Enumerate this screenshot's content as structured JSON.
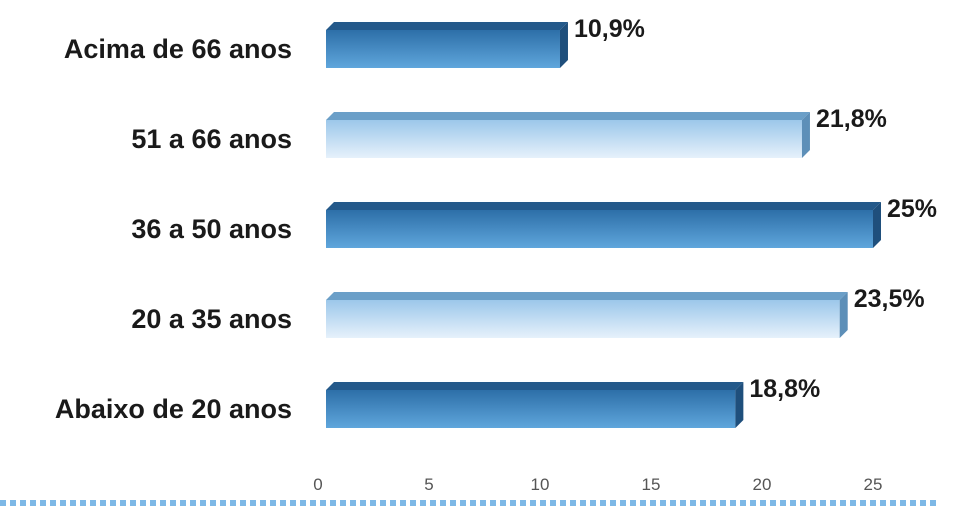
{
  "chart_data": {
    "type": "bar",
    "orientation": "horizontal",
    "categories": [
      "Acima de 66 anos",
      "51 a 66 anos",
      "36 a 50 anos",
      "20 a 35 anos",
      "Abaixo de 20 anos"
    ],
    "values": [
      10.9,
      21.8,
      25,
      23.5,
      18.8
    ],
    "data_labels": [
      "10,9%",
      "21,8%",
      "25%",
      "23,5%",
      "18,8%"
    ],
    "bar_styles": [
      "dark",
      "light",
      "dark",
      "light",
      "dark"
    ],
    "xlim": [
      0,
      27
    ],
    "xticks": [
      "0",
      "5",
      "10",
      "15",
      "20",
      "25"
    ],
    "grid": false,
    "colors": {
      "dark_top": "#2d6fa8",
      "dark_bottom": "#5fa6dc",
      "light_top": "#9cc7ea",
      "light_bottom": "#e6f1fb",
      "label": "#1a1a1a",
      "dotted_border": "#7db8e6"
    }
  }
}
